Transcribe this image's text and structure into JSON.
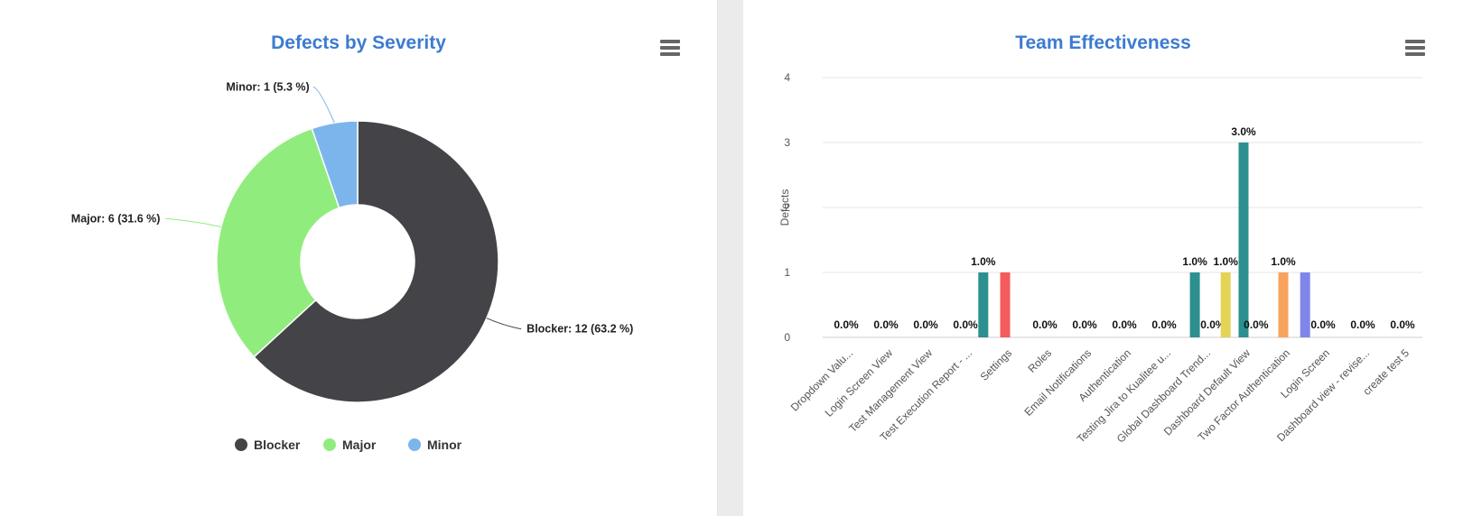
{
  "left": {
    "title": "Defects by Severity",
    "menu_icon": "hamburger-menu-icon",
    "chart_data": {
      "type": "pie",
      "variant": "donut",
      "slices": [
        {
          "name": "Blocker",
          "value": 12,
          "percent": 63.2,
          "label": "Blocker: 12 (63.2 %)",
          "color": "#434348"
        },
        {
          "name": "Major",
          "value": 6,
          "percent": 31.6,
          "label": "Major: 6 (31.6 %)",
          "color": "#90ed7d"
        },
        {
          "name": "Minor",
          "value": 1,
          "percent": 5.3,
          "label": "Minor: 1 (5.3 %)",
          "color": "#7cb5ec"
        }
      ],
      "legend_position": "bottom"
    }
  },
  "right": {
    "title": "Team Effectiveness",
    "menu_icon": "hamburger-menu-icon",
    "chart_data": {
      "type": "bar",
      "ylabel": "Defects",
      "ylim": [
        0,
        4
      ],
      "yticks": [
        "0",
        "1",
        "2",
        "3",
        "4"
      ],
      "grid": true,
      "categories": [
        "Dropdown Valu...",
        "Login Screen View",
        "Test Management View",
        "Test Execution Report - ...",
        "Settings",
        "Roles",
        "Email Notifications",
        "Authentication",
        "Testing Jira to Kualitee u...",
        "Global Dashboard Trend...",
        "Dashboard Default View",
        "Two Factor Authentication",
        "Login Screen",
        "Dashboard view - revise...",
        "create test 5"
      ],
      "bars": [
        {
          "category": 0,
          "slot": 0.5,
          "value": 0,
          "label": "0.0%",
          "color": "#7cb5ec"
        },
        {
          "category": 1,
          "slot": 0.5,
          "value": 0,
          "label": "0.0%",
          "color": "#7cb5ec"
        },
        {
          "category": 2,
          "slot": 0.5,
          "value": 0,
          "label": "0.0%",
          "color": "#7cb5ec"
        },
        {
          "category": 3,
          "slot": 0.5,
          "value": 0,
          "label": "0.0%",
          "color": "#7cb5ec"
        },
        {
          "category": 3,
          "slot": 1.0,
          "value": 1,
          "label": "1.0%",
          "color": "#2b908f"
        },
        {
          "category": 4,
          "slot": 0.5,
          "value": 1,
          "label": "",
          "color": "#f45b5b"
        },
        {
          "category": 5,
          "slot": 0.5,
          "value": 0,
          "label": "0.0%",
          "color": "#7cb5ec"
        },
        {
          "category": 6,
          "slot": 0.5,
          "value": 0,
          "label": "0.0%",
          "color": "#7cb5ec"
        },
        {
          "category": 7,
          "slot": 0.5,
          "value": 0,
          "label": "0.0%",
          "color": "#7cb5ec"
        },
        {
          "category": 8,
          "slot": 0.5,
          "value": 0,
          "label": "0.0%",
          "color": "#7cb5ec"
        },
        {
          "category": 9,
          "slot": 0.25,
          "value": 1,
          "label": "1.0%",
          "color": "#2b908f"
        },
        {
          "category": 9,
          "slot": 0.75,
          "value": 0,
          "label": "0.0%",
          "color": "#7cb5ec"
        },
        {
          "category": 10,
          "slot": 0.0,
          "value": 1,
          "label": "1.0%",
          "color": "#e4d354"
        },
        {
          "category": 10,
          "slot": 0.5,
          "value": 3,
          "label": "3.0%",
          "color": "#2b908f"
        },
        {
          "category": 10,
          "slot": 0.85,
          "value": 0,
          "label": "0.0%",
          "color": "#7cb5ec"
        },
        {
          "category": 11,
          "slot": 0.5,
          "value": 1,
          "label": "1.0%",
          "color": "#f7a35c"
        },
        {
          "category": 12,
          "slot": 0.0,
          "value": 1,
          "label": "",
          "color": "#8085e9"
        },
        {
          "category": 12,
          "slot": 0.5,
          "value": 0,
          "label": "0.0%",
          "color": "#7cb5ec"
        },
        {
          "category": 13,
          "slot": 0.5,
          "value": 0,
          "label": "0.0%",
          "color": "#7cb5ec"
        },
        {
          "category": 14,
          "slot": 0.5,
          "value": 0,
          "label": "0.0%",
          "color": "#7cb5ec"
        }
      ]
    }
  }
}
